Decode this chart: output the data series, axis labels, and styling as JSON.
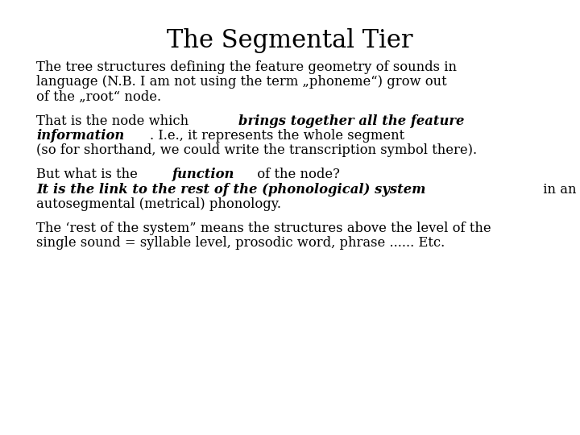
{
  "title": "The Segmental Tier",
  "background_color": "#ffffff",
  "text_color": "#000000",
  "title_fontsize": 22,
  "body_fontsize": 11.8,
  "font_family": "DejaVu Serif",
  "paragraphs": [
    {
      "lines": [
        [
          {
            "text": "The tree structures defining the feature geometry of sounds in",
            "bold": false,
            "italic": false
          }
        ],
        [
          {
            "text": "language (N.B. I am not using the term „phoneme“) grow out",
            "bold": false,
            "italic": false
          }
        ],
        [
          {
            "text": "of the „root“ node.",
            "bold": false,
            "italic": false
          }
        ]
      ]
    },
    {
      "lines": [
        [
          {
            "text": "That is the node which ",
            "bold": false,
            "italic": false
          },
          {
            "text": "brings together all the feature",
            "bold": true,
            "italic": true
          }
        ],
        [
          {
            "text": "information",
            "bold": true,
            "italic": true
          },
          {
            "text": ". I.e., it represents the whole segment",
            "bold": false,
            "italic": false
          }
        ],
        [
          {
            "text": "(so for shorthand, we could write the transcription symbol there).",
            "bold": false,
            "italic": false
          }
        ]
      ]
    },
    {
      "lines": [
        [
          {
            "text": "But what is the ",
            "bold": false,
            "italic": false
          },
          {
            "text": "function",
            "bold": true,
            "italic": true
          },
          {
            "text": " of the node?",
            "bold": false,
            "italic": false
          }
        ],
        [
          {
            "text": "It is the link to the rest of the (phonological) system",
            "bold": true,
            "italic": true
          },
          {
            "text": " in an",
            "bold": false,
            "italic": false
          }
        ],
        [
          {
            "text": "autosegmental (metrical) phonology.",
            "bold": false,
            "italic": false
          }
        ]
      ]
    },
    {
      "lines": [
        [
          {
            "text": "The ‘rest of the system” means the structures above the level of the",
            "bold": false,
            "italic": false
          }
        ],
        [
          {
            "text": "single sound = syllable level, prosodic word, phrase ...... Etc.",
            "bold": false,
            "italic": false
          }
        ]
      ]
    }
  ]
}
